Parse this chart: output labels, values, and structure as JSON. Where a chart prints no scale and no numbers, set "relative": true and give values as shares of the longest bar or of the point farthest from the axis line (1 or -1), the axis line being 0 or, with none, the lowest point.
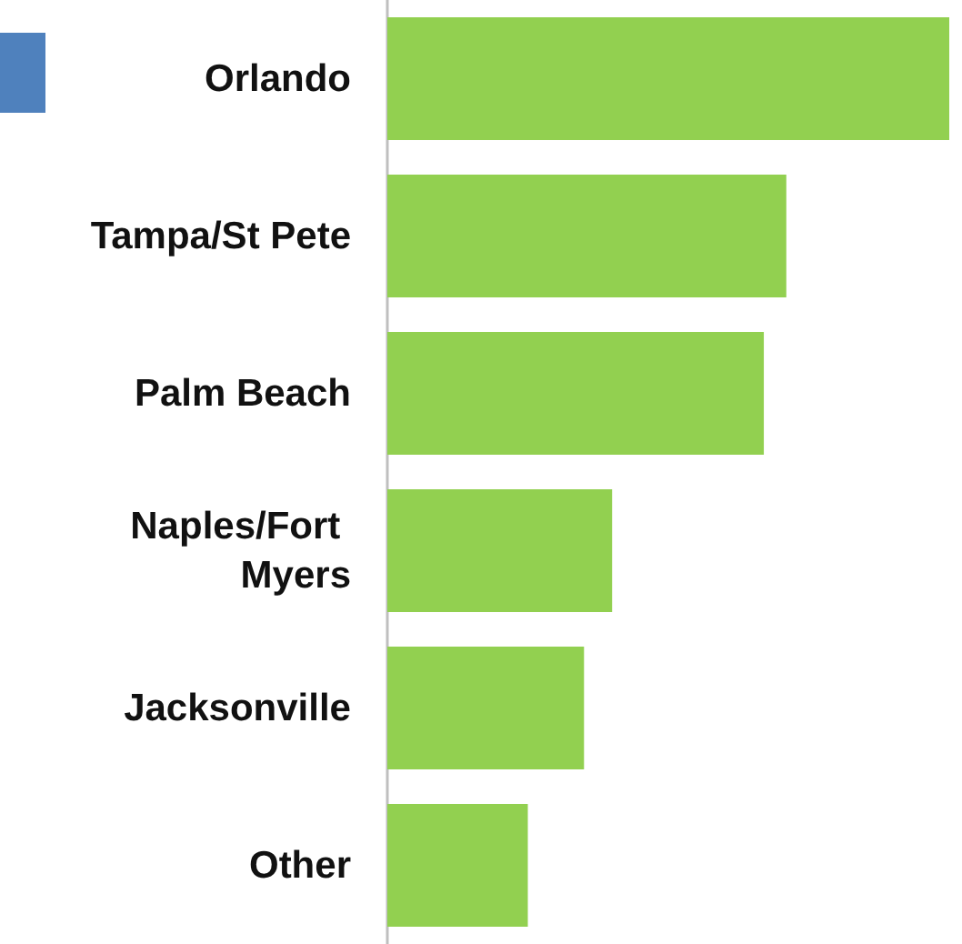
{
  "chart_data": {
    "type": "bar",
    "orientation": "horizontal",
    "relative": true,
    "categories": [
      "Orlando",
      "Tampa/St Pete",
      "Palm Beach",
      "Naples/Fort Myers",
      "Jacksonville",
      "Other"
    ],
    "values": [
      1,
      0.71,
      0.67,
      0.4,
      0.35,
      0.25
    ],
    "color": "#92d050"
  }
}
